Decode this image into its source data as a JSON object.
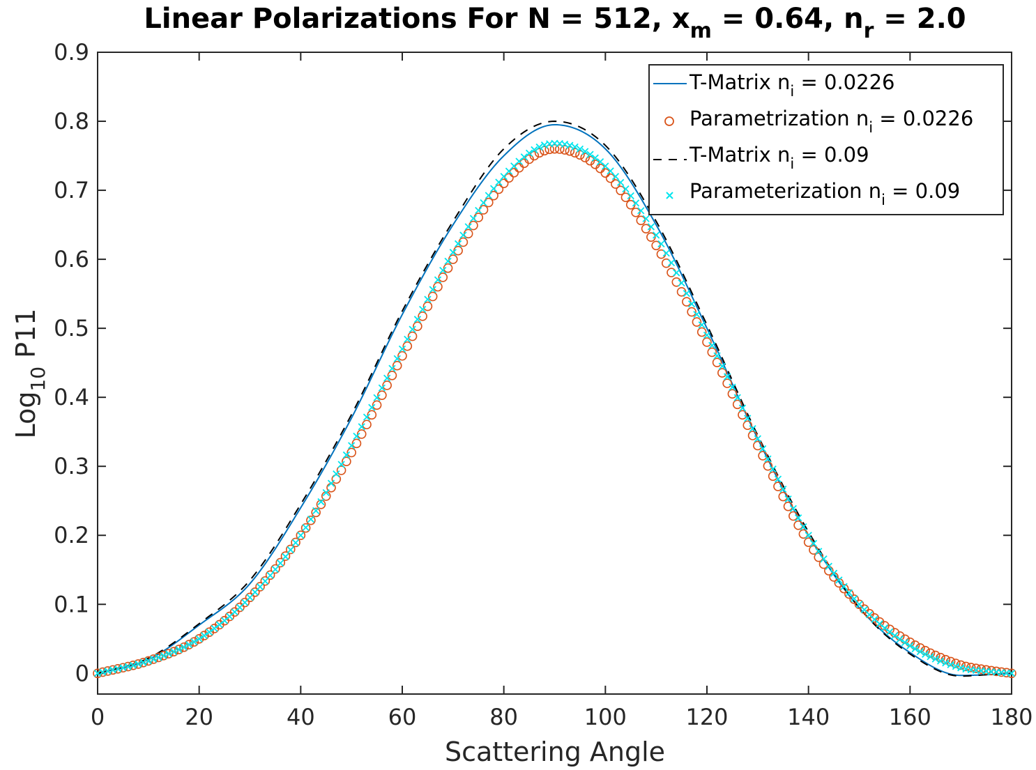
{
  "chart_data": {
    "type": "line",
    "title": {
      "main": "Linear Polarizations For N = 512, x",
      "sub1": "m",
      "mid": " = 0.64, n",
      "sub2": "r",
      "end": " = 2.0"
    },
    "xlabel": "Scattering Angle",
    "ylabel": {
      "main": "Log",
      "sub": "10",
      "end": " P11"
    },
    "xlim": [
      0,
      180
    ],
    "ylim": [
      -0.03,
      0.9
    ],
    "xticks": [
      0,
      20,
      40,
      60,
      80,
      100,
      120,
      140,
      160,
      180
    ],
    "xtick_labels": [
      "0",
      "20",
      "40",
      "60",
      "80",
      "100",
      "120",
      "140",
      "160",
      "180"
    ],
    "yticks": [
      0,
      0.1,
      0.2,
      0.3,
      0.4,
      0.5,
      0.6,
      0.7,
      0.8,
      0.9
    ],
    "ytick_labels": [
      "0",
      "0.1",
      "0.2",
      "0.3",
      "0.4",
      "0.5",
      "0.6",
      "0.7",
      "0.8",
      "0.9"
    ],
    "grid": false,
    "legend_position": "top-right",
    "x": [
      0,
      10,
      20,
      30,
      40,
      50,
      60,
      70,
      80,
      90,
      100,
      110,
      120,
      130,
      140,
      150,
      160,
      170,
      175,
      180
    ],
    "series": [
      {
        "name": "T-Matrix n",
        "name_sub": "i",
        "name_end": " = 0.0226",
        "style": "solid",
        "color": "#0072BD",
        "values": [
          0,
          0.02,
          0.07,
          0.13,
          0.24,
          0.37,
          0.52,
          0.65,
          0.75,
          0.795,
          0.76,
          0.65,
          0.5,
          0.34,
          0.2,
          0.095,
          0.03,
          -0.003,
          -0.002,
          0
        ]
      },
      {
        "name": "Parametrization n",
        "name_sub": "i",
        "name_end": " = 0.0226",
        "style": "circle",
        "color": "#D95319",
        "values": [
          0,
          0.018,
          0.05,
          0.11,
          0.2,
          0.32,
          0.46,
          0.6,
          0.71,
          0.76,
          0.725,
          0.62,
          0.48,
          0.33,
          0.19,
          0.1,
          0.045,
          0.012,
          0.005,
          0
        ]
      },
      {
        "name": "T-Matrix n",
        "name_sub": "i",
        "name_end": " = 0.09",
        "style": "dashed",
        "color": "#000000",
        "values": [
          0,
          0.022,
          0.072,
          0.135,
          0.245,
          0.375,
          0.525,
          0.655,
          0.76,
          0.8,
          0.765,
          0.655,
          0.505,
          0.345,
          0.205,
          0.095,
          0.028,
          -0.004,
          -0.002,
          0
        ]
      },
      {
        "name": "Parameterization n",
        "name_sub": "i",
        "name_end": " = 0.09",
        "style": "x",
        "color": "#00E5EE",
        "values": [
          0,
          0.018,
          0.05,
          0.11,
          0.2,
          0.33,
          0.47,
          0.61,
          0.72,
          0.768,
          0.735,
          0.635,
          0.49,
          0.34,
          0.2,
          0.1,
          0.04,
          0.008,
          0.003,
          0
        ]
      }
    ]
  }
}
